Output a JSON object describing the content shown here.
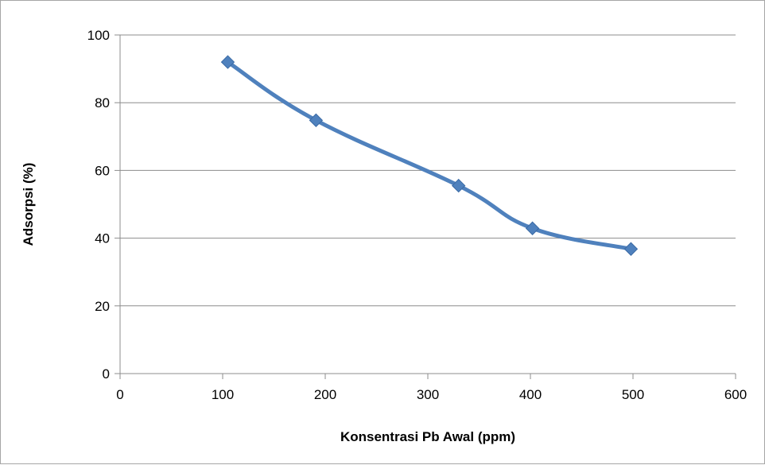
{
  "chart_data": {
    "type": "line",
    "title": "",
    "xlabel": "Konsentrasi Pb Awal (ppm)",
    "ylabel": "Adsorpsi (%)",
    "xlim": [
      0,
      600
    ],
    "ylim": [
      0,
      100
    ],
    "x_ticks": [
      0,
      100,
      200,
      300,
      400,
      500,
      600
    ],
    "y_ticks": [
      0,
      20,
      40,
      60,
      80,
      100
    ],
    "x_tick_labels": [
      "0",
      "100",
      "200",
      "300",
      "400",
      "500",
      "600"
    ],
    "y_tick_labels": [
      "0",
      "20",
      "40",
      "60",
      "80",
      "100"
    ],
    "grid": "horizontal",
    "line_style": "smooth",
    "marker": "diamond",
    "color": "#4f81bd",
    "series": [
      {
        "x": [
          105,
          191,
          330,
          402,
          498
        ],
        "values": [
          92.0,
          74.8,
          55.5,
          42.9,
          36.8
        ]
      }
    ]
  }
}
